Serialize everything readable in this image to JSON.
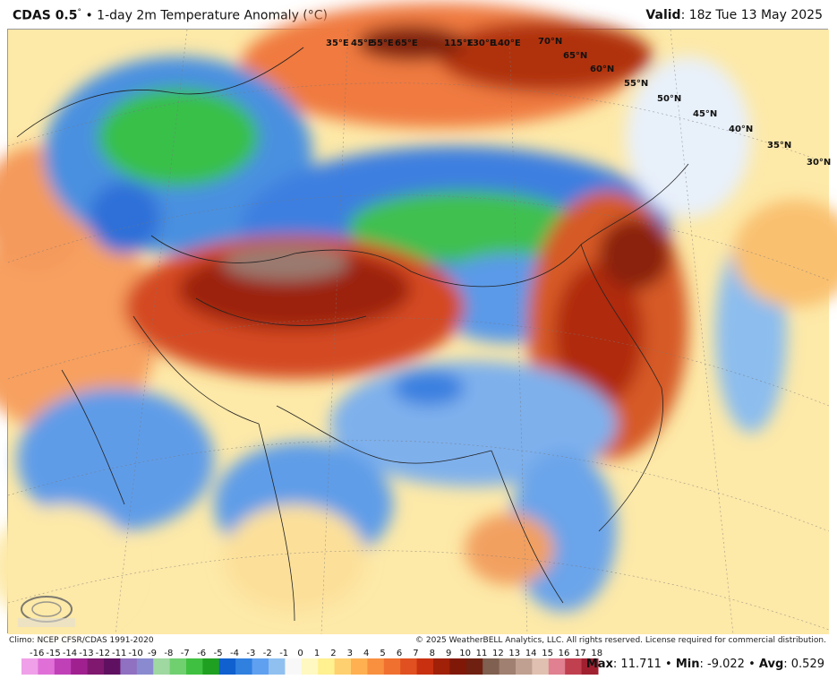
{
  "header": {
    "product": "CDAS 0.5",
    "degree_sym": "°",
    "title_rest": " • 1-day 2m Temperature Anomaly (°C)",
    "valid_label": "Valid",
    "valid_time": ": 18z Tue 13 May 2025"
  },
  "footer": {
    "climo": "Climo: NCEP CFSR/CDAS 1991-2020",
    "copyright": "© 2025 WeatherBELL Analytics, LLC. All rights reserved. License required for commercial distribution."
  },
  "stats": {
    "max_label": "Max",
    "max_value": ": 11.711",
    "sep1": " • ",
    "min_label": "Min",
    "min_value": ": -9.022",
    "sep2": " • ",
    "avg_label": "Avg",
    "avg_value": ": 0.529"
  },
  "colorbar": {
    "ticks": [
      "-16",
      "-15",
      "-14",
      "-13",
      "-12",
      "-11",
      "-10",
      "-9",
      "-8",
      "-7",
      "-6",
      "-5",
      "-4",
      "-3",
      "-2",
      "-1",
      "0",
      "1",
      "2",
      "3",
      "4",
      "5",
      "6",
      "7",
      "8",
      "9",
      "10",
      "11",
      "12",
      "13",
      "14",
      "15",
      "16",
      "17",
      "18"
    ],
    "colors": [
      "#f0a0e8",
      "#e070d8",
      "#c040b8",
      "#a02090",
      "#801870",
      "#601060",
      "#9070c0",
      "#8a8ad0",
      "#9fd8a0",
      "#70d070",
      "#40c040",
      "#20a020",
      "#1060d0",
      "#3080e0",
      "#60a0f0",
      "#90c0f0",
      "#f8f8f8",
      "#fff8c0",
      "#fff090",
      "#ffd070",
      "#ffb050",
      "#f89040",
      "#f07030",
      "#e05020",
      "#c83010",
      "#a02008",
      "#801808",
      "#702010",
      "#806050",
      "#a08070",
      "#c0a090",
      "#e0c0b0",
      "#e08090",
      "#c04050",
      "#a02030"
    ]
  },
  "map": {
    "lat_labels": [
      "70°N",
      "65°N",
      "60°N",
      "55°N",
      "50°N",
      "45°N",
      "40°N",
      "35°N",
      "30°N"
    ],
    "lon_labels": [
      "35°E",
      "45°E",
      "55°E",
      "65°E",
      "115°E",
      "130°E",
      "140°E"
    ],
    "logo_text": "WEATHERBELL"
  }
}
